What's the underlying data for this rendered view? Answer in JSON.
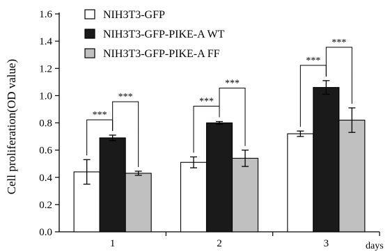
{
  "chart_data": {
    "type": "bar",
    "title": "",
    "xlabel": "days",
    "ylabel": "Cell proliferation(OD value)",
    "ylim": [
      0,
      1.6
    ],
    "yticks": [
      "0.0",
      "0.2",
      "0.4",
      "0.6",
      "0.8",
      "1.0",
      "1.2",
      "1.4",
      "1.6"
    ],
    "categories": [
      "1",
      "2",
      "3"
    ],
    "grid": false,
    "legend_position": "top-left",
    "series": [
      {
        "name": "NIH3T3-GFP",
        "color": "#ffffff",
        "values": [
          0.44,
          0.51,
          0.72
        ],
        "errors": [
          0.09,
          0.04,
          0.02
        ]
      },
      {
        "name": "NIH3T3-GFP-PIKE-A WT",
        "color": "#1a1a1a",
        "values": [
          0.69,
          0.8,
          1.06
        ],
        "errors": [
          0.02,
          0.01,
          0.05
        ]
      },
      {
        "name": "NIH3T3-GFP-PIKE-A FF",
        "color": "#c0c0c0",
        "values": [
          0.43,
          0.54,
          0.82
        ],
        "errors": [
          0.015,
          0.06,
          0.09
        ]
      }
    ],
    "significance": [
      {
        "category": "1",
        "pair": [
          0,
          1
        ],
        "label": "***"
      },
      {
        "category": "1",
        "pair": [
          1,
          2
        ],
        "label": "***"
      },
      {
        "category": "2",
        "pair": [
          0,
          1
        ],
        "label": "***"
      },
      {
        "category": "2",
        "pair": [
          1,
          2
        ],
        "label": "***"
      },
      {
        "category": "3",
        "pair": [
          0,
          1
        ],
        "label": "***"
      },
      {
        "category": "3",
        "pair": [
          1,
          2
        ],
        "label": "***"
      }
    ]
  }
}
